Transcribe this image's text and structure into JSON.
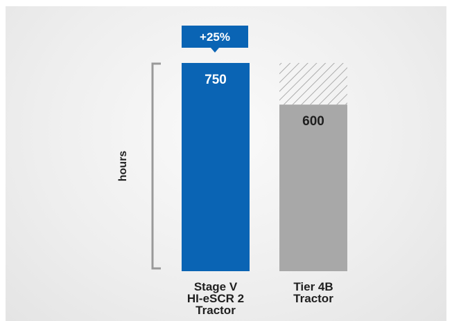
{
  "chart_data": {
    "type": "bar",
    "categories": [
      "Stage V HI-eSCR 2 Tractor",
      "Tier 4B Tractor"
    ],
    "category_lines": [
      [
        "Stage V",
        "HI-eSCR 2",
        "Tractor"
      ],
      [
        "Tier 4B",
        "Tractor"
      ]
    ],
    "values": [
      750,
      600
    ],
    "value_labels": [
      "750",
      "600"
    ],
    "ylabel": "hours",
    "ylim": [
      0,
      750
    ],
    "annotation": "+25%",
    "hatched_gap": true,
    "grid": false,
    "colors": {
      "primary_bar": "#0a64b4",
      "secondary_bar": "#a8a8a8",
      "hatch": "#9a9a9a",
      "bracket": "#999999",
      "primary_text": "#ffffff",
      "secondary_text": "#1f1f1f"
    }
  }
}
